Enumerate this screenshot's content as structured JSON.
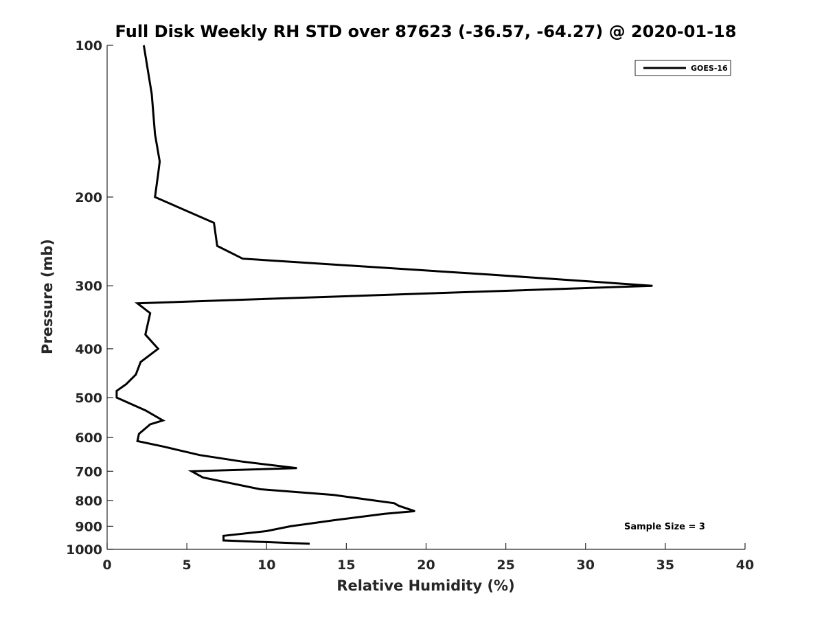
{
  "chart_data": {
    "type": "line",
    "title": "Full Disk Weekly RH STD over 87623 (-36.57, -64.27) @ 2020-01-18",
    "xlabel": "Relative Humidity (%)",
    "ylabel": "Pressure (mb)",
    "xlim": [
      0,
      40
    ],
    "ylim": [
      1000,
      100
    ],
    "yscale": "log",
    "x_ticks": [
      "0",
      "5",
      "10",
      "15",
      "20",
      "25",
      "30",
      "35",
      "40"
    ],
    "y_ticks": [
      "100",
      "200",
      "300",
      "400",
      "500",
      "600",
      "700",
      "800",
      "900",
      "1000"
    ],
    "grid": false,
    "legend": {
      "position": "top-right",
      "entries": [
        "GOES-16"
      ]
    },
    "annotation": "Sample Size = 3",
    "series": [
      {
        "name": "GOES-16",
        "color": "#000000",
        "points": [
          [
            2.3,
            100
          ],
          [
            2.8,
            125
          ],
          [
            3.0,
            150
          ],
          [
            3.3,
            170
          ],
          [
            3.2,
            180
          ],
          [
            3.0,
            200
          ],
          [
            6.7,
            225
          ],
          [
            6.9,
            250
          ],
          [
            8.5,
            265
          ],
          [
            24.0,
            285
          ],
          [
            34.2,
            300
          ],
          [
            1.9,
            325
          ],
          [
            2.7,
            340
          ],
          [
            2.4,
            375
          ],
          [
            3.2,
            400
          ],
          [
            2.1,
            425
          ],
          [
            1.8,
            450
          ],
          [
            1.2,
            470
          ],
          [
            0.6,
            485
          ],
          [
            0.6,
            500
          ],
          [
            2.4,
            530
          ],
          [
            3.5,
            555
          ],
          [
            2.7,
            565
          ],
          [
            2.0,
            590
          ],
          [
            1.9,
            610
          ],
          [
            3.5,
            625
          ],
          [
            5.8,
            650
          ],
          [
            8.5,
            670
          ],
          [
            11.9,
            690
          ],
          [
            5.3,
            700
          ],
          [
            6.0,
            720
          ],
          [
            9.6,
            760
          ],
          [
            14.2,
            780
          ],
          [
            18.0,
            810
          ],
          [
            18.3,
            820
          ],
          [
            19.3,
            840
          ],
          [
            17.4,
            850
          ],
          [
            14.3,
            875
          ],
          [
            11.5,
            900
          ],
          [
            10.0,
            920
          ],
          [
            7.3,
            940
          ],
          [
            7.3,
            960
          ],
          [
            12.7,
            975
          ]
        ]
      }
    ]
  }
}
